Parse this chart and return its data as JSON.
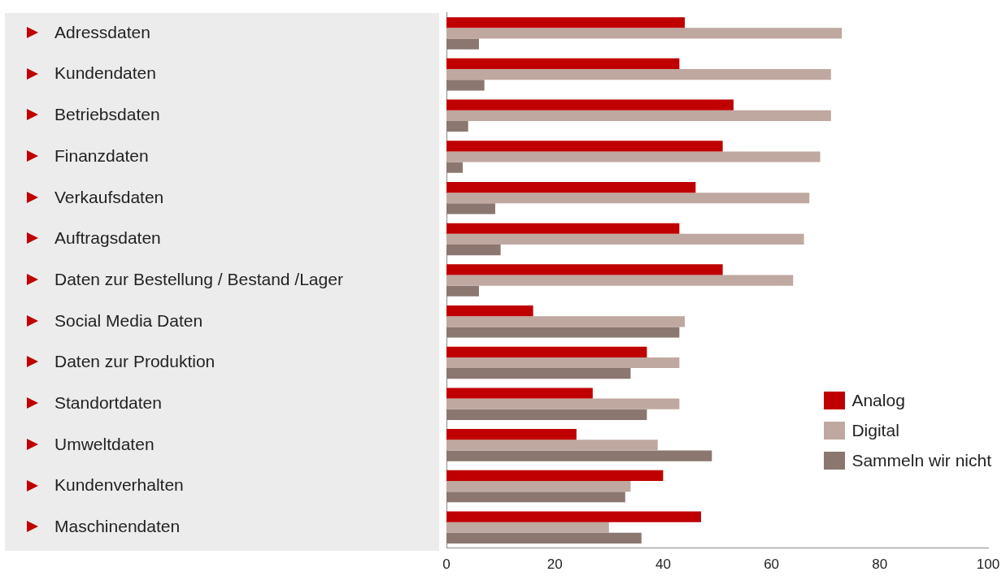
{
  "chart_data": {
    "type": "bar",
    "orientation": "horizontal",
    "categories": [
      "Adressdaten",
      "Kundendaten",
      "Betriebsdaten",
      "Finanzdaten",
      "Verkaufsdaten",
      "Auftragsdaten",
      "Daten zur Bestellung / Bestand /Lager",
      "Social Media Daten",
      "Daten zur Produktion",
      "Standortdaten",
      "Umweltdaten",
      "Kundenverhalten",
      "Maschinendaten"
    ],
    "series": [
      {
        "name": "Analog",
        "color": "#c00000",
        "values": [
          44,
          43,
          53,
          51,
          46,
          43,
          51,
          16,
          37,
          27,
          24,
          40,
          47
        ]
      },
      {
        "name": "Digital",
        "color": "#bfa8a0",
        "values": [
          73,
          71,
          71,
          69,
          67,
          66,
          64,
          44,
          43,
          43,
          39,
          34,
          30
        ]
      },
      {
        "name": "Sammeln wir nicht",
        "color": "#8b7670",
        "values": [
          6,
          7,
          4,
          3,
          9,
          10,
          6,
          43,
          34,
          37,
          49,
          33,
          36
        ]
      }
    ],
    "xlim": [
      0,
      100
    ],
    "xticks": [
      0,
      20,
      40,
      60,
      80,
      100
    ],
    "grid": false,
    "legend": "bottom right"
  }
}
